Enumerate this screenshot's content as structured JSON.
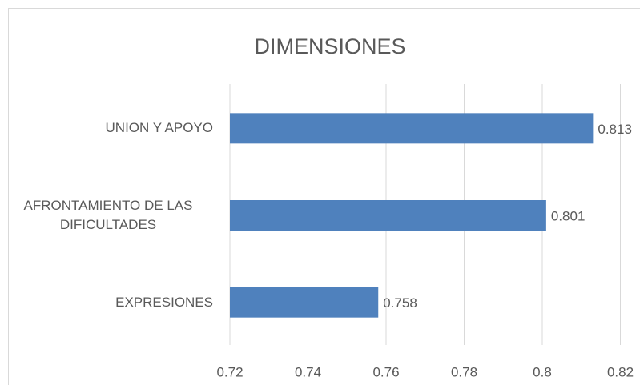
{
  "chart_data": {
    "type": "bar",
    "orientation": "horizontal",
    "title": "DIMENSIONES",
    "categories": [
      "UNION Y APOYO",
      "AFRONTAMIENTO DE LAS DIFICULTADES",
      "EXPRESIONES"
    ],
    "values": [
      0.813,
      0.801,
      0.758
    ],
    "color": "#4f81bd",
    "xlim": [
      0.72,
      0.82
    ],
    "xticks": [
      0.72,
      0.74,
      0.76,
      0.78,
      0.8,
      0.82
    ],
    "grid": true
  }
}
